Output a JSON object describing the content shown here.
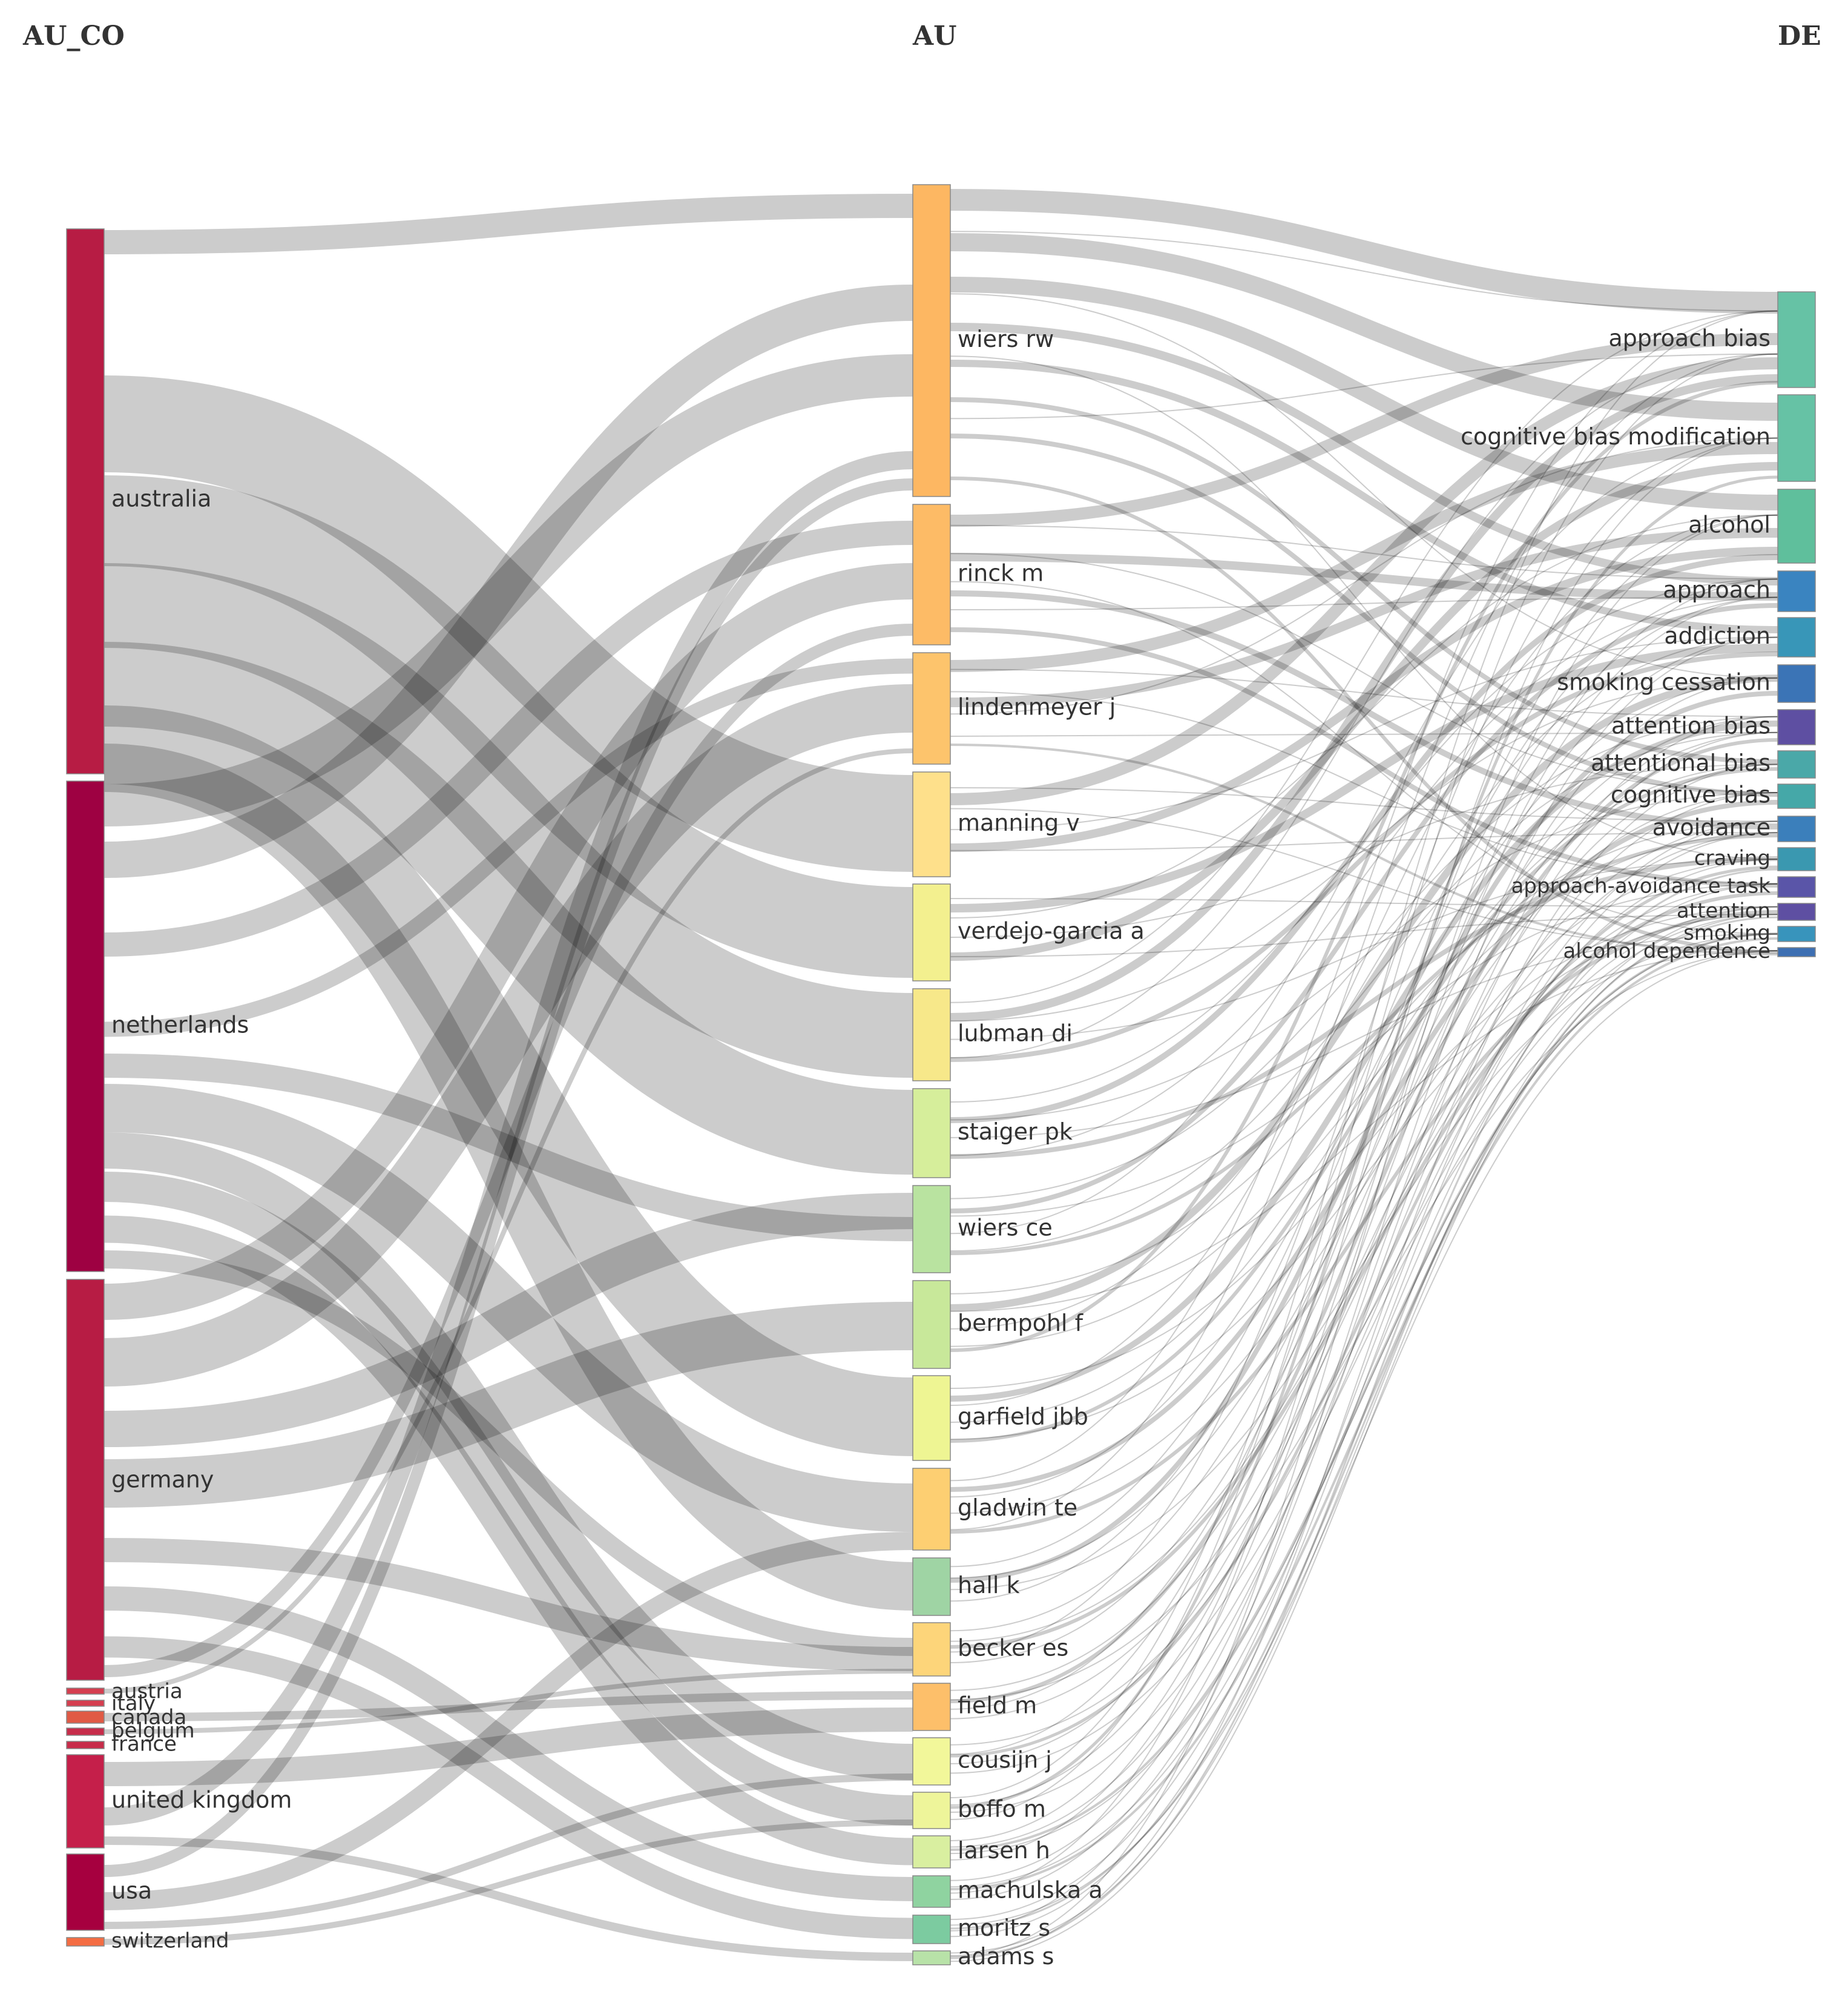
{
  "columns": {
    "left_header": "AU_CO",
    "middle_header": "AU",
    "right_header": "DE"
  },
  "countries": [
    {
      "id": "australia",
      "label": "australia",
      "color": "#b71c44"
    },
    {
      "id": "netherlands",
      "label": "netherlands",
      "color": "#9e0142"
    },
    {
      "id": "germany",
      "label": "germany",
      "color": "#b71c44"
    },
    {
      "id": "austria",
      "label": "austria",
      "color": "#d53e4f"
    },
    {
      "id": "italy",
      "label": "italy",
      "color": "#d53e4f"
    },
    {
      "id": "canada",
      "label": "canada",
      "color": "#e05a45"
    },
    {
      "id": "belgium",
      "label": "belgium",
      "color": "#c72c4a"
    },
    {
      "id": "france",
      "label": "france",
      "color": "#c72c4a"
    },
    {
      "id": "united-kingdom",
      "label": "united kingdom",
      "color": "#c51f4a"
    },
    {
      "id": "usa",
      "label": "usa",
      "color": "#a6003f"
    },
    {
      "id": "switzerland",
      "label": "switzerland",
      "color": "#f46d43"
    }
  ],
  "authors": [
    {
      "id": "wiers-rw",
      "label": "wiers rw",
      "color": "#fdb762"
    },
    {
      "id": "rinck-m",
      "label": "rinck m",
      "color": "#fdbb66"
    },
    {
      "id": "lindenmeyer-j",
      "label": "lindenmeyer j",
      "color": "#fdc46c"
    },
    {
      "id": "manning-v",
      "label": "manning v",
      "color": "#fee08b"
    },
    {
      "id": "verdejo-garcia-a",
      "label": "verdejo-garcia a",
      "color": "#f3f08f"
    },
    {
      "id": "lubman-di",
      "label": "lubman di",
      "color": "#f7e88a"
    },
    {
      "id": "staiger-pk",
      "label": "staiger pk",
      "color": "#d6ee9b"
    },
    {
      "id": "wiers-ce",
      "label": "wiers ce",
      "color": "#b9e3a0"
    },
    {
      "id": "bermpohl-f",
      "label": "bermpohl f",
      "color": "#c8e89a"
    },
    {
      "id": "garfield-jbb",
      "label": "garfield jbb",
      "color": "#eef593"
    },
    {
      "id": "gladwin-te",
      "label": "gladwin te",
      "color": "#fdcf72"
    },
    {
      "id": "hall-k",
      "label": "hall k",
      "color": "#9fd4a4"
    },
    {
      "id": "becker-es",
      "label": "becker es",
      "color": "#fdd57a"
    },
    {
      "id": "field-m",
      "label": "field m",
      "color": "#fdbf6a"
    },
    {
      "id": "cousijn-j",
      "label": "cousijn j",
      "color": "#f2f79a"
    },
    {
      "id": "boffo-m",
      "label": "boffo m",
      "color": "#eef59a"
    },
    {
      "id": "larsen-h",
      "label": "larsen h",
      "color": "#d9efa0"
    },
    {
      "id": "machulska-a",
      "label": "machulska a",
      "color": "#8fd3a0"
    },
    {
      "id": "moritz-s",
      "label": "moritz s",
      "color": "#7ccba0"
    },
    {
      "id": "adams-s",
      "label": "adams s",
      "color": "#b8e2a8"
    }
  ],
  "keywords": [
    {
      "id": "approach-bias",
      "label": "approach bias",
      "color": "#66c2a5"
    },
    {
      "id": "cognitive-bias-modification",
      "label": "cognitive bias modification",
      "color": "#66c2a5"
    },
    {
      "id": "alcohol",
      "label": "alcohol",
      "color": "#5fbf9c"
    },
    {
      "id": "approach",
      "label": "approach",
      "color": "#3a84c0"
    },
    {
      "id": "addiction",
      "label": "addiction",
      "color": "#3896b8"
    },
    {
      "id": "smoking-cessation",
      "label": "smoking cessation",
      "color": "#3b74b6"
    },
    {
      "id": "attention-bias",
      "label": "attention bias",
      "color": "#5e4fa2"
    },
    {
      "id": "attentional-bias",
      "label": "attentional bias",
      "color": "#4aa8a8"
    },
    {
      "id": "cognitive-bias",
      "label": "cognitive bias",
      "color": "#45a8a8"
    },
    {
      "id": "avoidance",
      "label": "avoidance",
      "color": "#3b7fbb"
    },
    {
      "id": "craving",
      "label": "craving",
      "color": "#3a98b0"
    },
    {
      "id": "approach-avoidance-task",
      "label": "approach-avoidance task",
      "color": "#5a55a8"
    },
    {
      "id": "attention",
      "label": "attention",
      "color": "#5e4fa2"
    },
    {
      "id": "smoking",
      "label": "smoking",
      "color": "#3894bc"
    },
    {
      "id": "alcohol-dependence",
      "label": "alcohol dependence",
      "color": "#3d6fb2"
    }
  ]
}
